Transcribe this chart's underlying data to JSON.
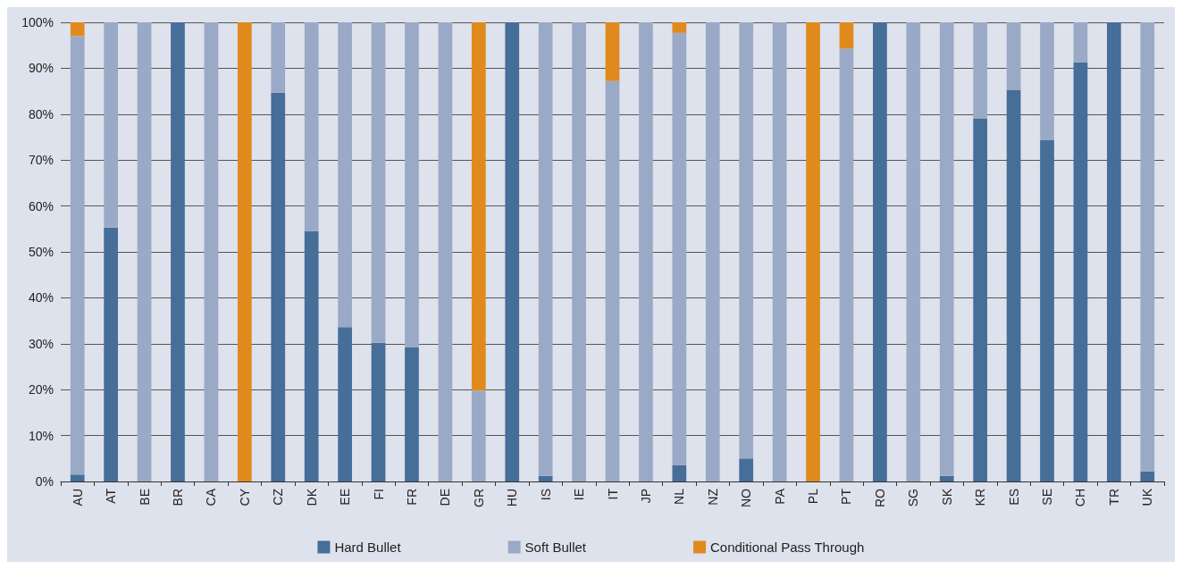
{
  "chart_data": {
    "type": "bar",
    "stacked": true,
    "categories": [
      "AU",
      "AT",
      "BE",
      "BR",
      "CA",
      "CY",
      "CZ",
      "DK",
      "EE",
      "FI",
      "FR",
      "DE",
      "GR",
      "HU",
      "IS",
      "IE",
      "IT",
      "JP",
      "NL",
      "NZ",
      "NO",
      "PA",
      "PL",
      "PT",
      "RO",
      "SG",
      "SK",
      "KR",
      "ES",
      "SE",
      "CH",
      "TR",
      "UK"
    ],
    "series": [
      {
        "name": "Hard Bullet",
        "color": "#476d99",
        "values": [
          1.5,
          55.3,
          null,
          100,
          null,
          null,
          84.7,
          54.5,
          33.6,
          30.2,
          29.2,
          null,
          null,
          100,
          1.2,
          null,
          null,
          null,
          3.5,
          null,
          5,
          null,
          null,
          null,
          100,
          null,
          1.2,
          79.1,
          85.3,
          74.3,
          91.3,
          100,
          2.2
        ]
      },
      {
        "name": "Soft Bullet",
        "color": "#9aaac6",
        "values": [
          95.5,
          44.7,
          100,
          null,
          100,
          null,
          15.3,
          45.5,
          66.4,
          69.8,
          70.8,
          100,
          19.8,
          null,
          98.8,
          100,
          87.2,
          100,
          94.2,
          100,
          95,
          100,
          null,
          94.3,
          null,
          100,
          98.8,
          20.9,
          14.7,
          25.7,
          8.7,
          null,
          97.8
        ]
      },
      {
        "name": "Conditional Pass Through",
        "color": "#e08a1e",
        "values": [
          3,
          null,
          null,
          null,
          null,
          100,
          null,
          null,
          null,
          null,
          null,
          null,
          80.2,
          null,
          null,
          null,
          12.8,
          null,
          2.3,
          null,
          null,
          null,
          100,
          5.7,
          null,
          null,
          null,
          null,
          null,
          null,
          null,
          null,
          null
        ]
      }
    ],
    "ylim": [
      0,
      100
    ],
    "yticks": [
      {
        "value": 0,
        "label": "0%"
      },
      {
        "value": 10,
        "label": "10%"
      },
      {
        "value": 20,
        "label": "20%"
      },
      {
        "value": 30,
        "label": "30%"
      },
      {
        "value": 40,
        "label": "40%"
      },
      {
        "value": 50,
        "label": "50%"
      },
      {
        "value": 60,
        "label": "60%"
      },
      {
        "value": 70,
        "label": "70%"
      },
      {
        "value": 80,
        "label": "80%"
      },
      {
        "value": 90,
        "label": "90%"
      },
      {
        "value": 100,
        "label": "100%"
      }
    ],
    "grid": "y",
    "legend": "bottom"
  }
}
